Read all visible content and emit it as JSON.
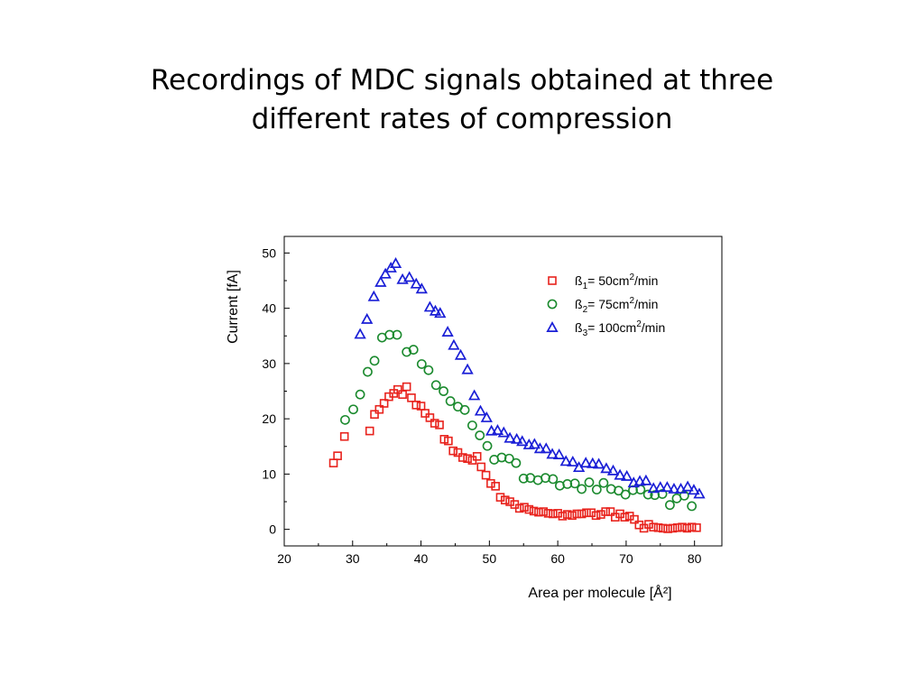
{
  "slide": {
    "title_line1": "Recordings of MDC signals obtained at three",
    "title_line2": "different rates of compression"
  },
  "chart_data": {
    "type": "scatter",
    "title": "",
    "xlabel": "Area per molecule [Å²]",
    "ylabel": "Current [fA]",
    "xlim": [
      20,
      84
    ],
    "ylim": [
      -3,
      53
    ],
    "xticks": [
      20,
      30,
      40,
      50,
      60,
      70,
      80
    ],
    "yticks": [
      0,
      10,
      20,
      30,
      40,
      50
    ],
    "grid": false,
    "legend_position": "top-right",
    "series": [
      {
        "name": "ß1= 50cm2/min",
        "legend": {
          "base": "ß",
          "sub": "1",
          "mid": "= 50cm",
          "sup": "2",
          "end": "/min"
        },
        "marker": "square",
        "color": "#e8231d",
        "points": [
          [
            27.2,
            12
          ],
          [
            27.8,
            13.3
          ],
          [
            28.8,
            16.8
          ],
          [
            32.5,
            17.8
          ],
          [
            33.2,
            20.8
          ],
          [
            33.9,
            21.7
          ],
          [
            34.6,
            22.8
          ],
          [
            35.3,
            24
          ],
          [
            36,
            24.6
          ],
          [
            36.6,
            25.3
          ],
          [
            37.3,
            24.4
          ],
          [
            37.9,
            25.8
          ],
          [
            38.6,
            23.8
          ],
          [
            39.3,
            22.5
          ],
          [
            40,
            22.3
          ],
          [
            40.6,
            21
          ],
          [
            41.3,
            20.2
          ],
          [
            42,
            19.2
          ],
          [
            42.7,
            18.9
          ],
          [
            43.4,
            16.3
          ],
          [
            44,
            16
          ],
          [
            44.7,
            14.2
          ],
          [
            45.4,
            13.9
          ],
          [
            46.1,
            13
          ],
          [
            46.8,
            12.8
          ],
          [
            47.5,
            12.5
          ],
          [
            48.2,
            13.2
          ],
          [
            48.8,
            11.3
          ],
          [
            49.5,
            9.8
          ],
          [
            50.2,
            8.3
          ],
          [
            50.9,
            7.8
          ],
          [
            51.6,
            5.8
          ],
          [
            52.3,
            5.3
          ],
          [
            53,
            5
          ],
          [
            53.7,
            4.5
          ],
          [
            54.4,
            3.8
          ],
          [
            55.1,
            4
          ],
          [
            55.8,
            3.6
          ],
          [
            56.5,
            3.3
          ],
          [
            57.2,
            3.1
          ],
          [
            57.9,
            3.2
          ],
          [
            58.6,
            2.9
          ],
          [
            59.3,
            2.8
          ],
          [
            60,
            2.9
          ],
          [
            60.7,
            2.4
          ],
          [
            61.4,
            2.7
          ],
          [
            62.1,
            2.5
          ],
          [
            62.8,
            2.8
          ],
          [
            63.5,
            2.8
          ],
          [
            64.2,
            3
          ],
          [
            64.9,
            3
          ],
          [
            65.6,
            2.5
          ],
          [
            66.3,
            2.7
          ],
          [
            67,
            3.2
          ],
          [
            67.7,
            3.2
          ],
          [
            68.4,
            2.2
          ],
          [
            69.1,
            2.8
          ],
          [
            69.8,
            2.2
          ],
          [
            70.5,
            2.4
          ],
          [
            71.2,
            1.8
          ],
          [
            71.9,
            0.8
          ],
          [
            72.6,
            0.2
          ],
          [
            73.3,
            0.9
          ],
          [
            74,
            0.4
          ],
          [
            74.7,
            0.3
          ],
          [
            75.4,
            0.2
          ],
          [
            76.1,
            0.1
          ],
          [
            76.8,
            0.2
          ],
          [
            77.5,
            0.3
          ],
          [
            78.2,
            0.4
          ],
          [
            78.9,
            0.2
          ],
          [
            79.6,
            0.4
          ],
          [
            80.3,
            0.3
          ]
        ]
      },
      {
        "name": "ß2= 75cm2/min",
        "legend": {
          "base": "ß",
          "sub": "2",
          "mid": "= 75cm",
          "sup": "2",
          "end": "/min"
        },
        "marker": "circle",
        "color": "#1b8a2e",
        "points": [
          [
            28.9,
            19.8
          ],
          [
            30.1,
            21.7
          ],
          [
            31.1,
            24.4
          ],
          [
            32.2,
            28.5
          ],
          [
            33.2,
            30.5
          ],
          [
            34.3,
            34.7
          ],
          [
            35.4,
            35.2
          ],
          [
            36.5,
            35.2
          ],
          [
            37.9,
            32.1
          ],
          [
            38.9,
            32.5
          ],
          [
            40.1,
            29.9
          ],
          [
            41.1,
            28.8
          ],
          [
            42.2,
            26.1
          ],
          [
            43.3,
            25
          ],
          [
            44.3,
            23.2
          ],
          [
            45.4,
            22.2
          ],
          [
            46.4,
            21.6
          ],
          [
            47.5,
            18.8
          ],
          [
            48.6,
            17
          ],
          [
            49.7,
            15.1
          ],
          [
            50.7,
            12.6
          ],
          [
            51.8,
            13
          ],
          [
            52.9,
            12.8
          ],
          [
            53.9,
            12
          ],
          [
            55,
            9.2
          ],
          [
            56,
            9.3
          ],
          [
            57.1,
            8.9
          ],
          [
            58.2,
            9.3
          ],
          [
            59.3,
            9.1
          ],
          [
            60.3,
            7.9
          ],
          [
            61.4,
            8.2
          ],
          [
            62.5,
            8.3
          ],
          [
            63.5,
            7.3
          ],
          [
            64.6,
            8.5
          ],
          [
            65.7,
            7.2
          ],
          [
            66.7,
            8.4
          ],
          [
            67.8,
            7.3
          ],
          [
            68.9,
            7
          ],
          [
            69.9,
            6.3
          ],
          [
            71,
            7.1
          ],
          [
            72.1,
            7.2
          ],
          [
            73.2,
            6.3
          ],
          [
            74.2,
            6.2
          ],
          [
            75.3,
            6.4
          ],
          [
            76.4,
            4.4
          ],
          [
            77.4,
            5.6
          ],
          [
            78.5,
            6.1
          ],
          [
            79.6,
            4.2
          ]
        ]
      },
      {
        "name": "ß3= 100cm2/min",
        "legend": {
          "base": "ß",
          "sub": "3",
          "mid": "= 100cm",
          "sup": "2",
          "end": "/min"
        },
        "marker": "triangle",
        "color": "#1a1fd6",
        "points": [
          [
            31.1,
            35.3
          ],
          [
            32.1,
            38
          ],
          [
            33.1,
            42.1
          ],
          [
            34.1,
            44.7
          ],
          [
            34.8,
            46.2
          ],
          [
            35.6,
            47.3
          ],
          [
            36.3,
            48.1
          ],
          [
            37.3,
            45.2
          ],
          [
            38.3,
            45.6
          ],
          [
            39.3,
            44.4
          ],
          [
            40.1,
            43.5
          ],
          [
            41.3,
            40.2
          ],
          [
            42.1,
            39.5
          ],
          [
            42.8,
            39.1
          ],
          [
            43.9,
            35.7
          ],
          [
            44.8,
            33.3
          ],
          [
            45.8,
            31.5
          ],
          [
            46.8,
            28.9
          ],
          [
            47.8,
            24.2
          ],
          [
            48.7,
            21.4
          ],
          [
            49.6,
            20.2
          ],
          [
            50.3,
            17.8
          ],
          [
            51.2,
            17.9
          ],
          [
            52.1,
            17.5
          ],
          [
            53,
            16.5
          ],
          [
            54,
            16.3
          ],
          [
            54.8,
            15.9
          ],
          [
            55.8,
            15.3
          ],
          [
            56.6,
            15.4
          ],
          [
            57.4,
            14.6
          ],
          [
            58.3,
            14.6
          ],
          [
            59.2,
            13.6
          ],
          [
            60.2,
            13.5
          ],
          [
            61.2,
            12.3
          ],
          [
            62.2,
            12.2
          ],
          [
            63.1,
            11.2
          ],
          [
            64.1,
            12
          ],
          [
            65.1,
            11.9
          ],
          [
            66,
            11.8
          ],
          [
            67.1,
            11
          ],
          [
            68.1,
            10.6
          ],
          [
            69.1,
            9.8
          ],
          [
            70.1,
            9.6
          ],
          [
            71.1,
            8.4
          ],
          [
            72,
            8.7
          ],
          [
            72.9,
            8.8
          ],
          [
            74,
            7.4
          ],
          [
            75,
            7.6
          ],
          [
            76,
            7.6
          ],
          [
            77,
            7.3
          ],
          [
            78,
            7.3
          ],
          [
            79,
            7.7
          ],
          [
            79.9,
            7.1
          ],
          [
            80.7,
            6.4
          ]
        ]
      }
    ]
  }
}
